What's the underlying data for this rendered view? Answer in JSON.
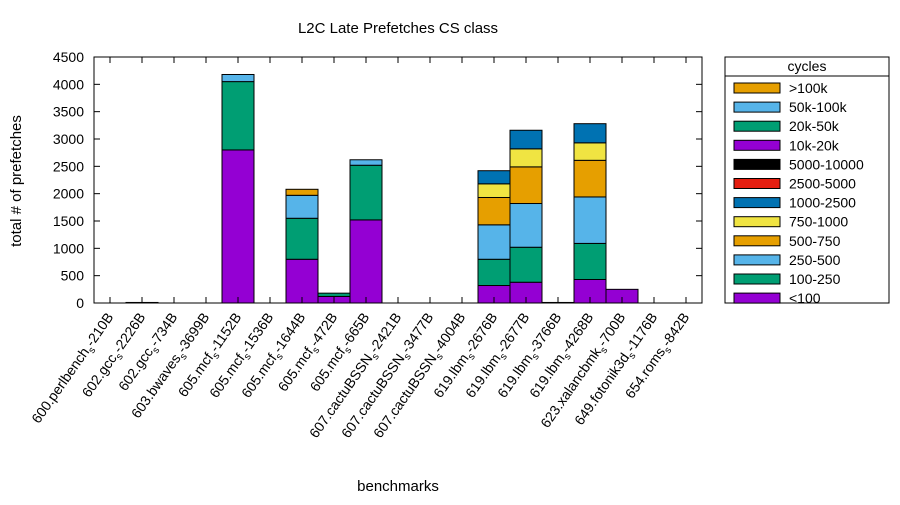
{
  "chart_data": {
    "type": "bar",
    "stacked": true,
    "title": "L2C Late Prefetches CS class",
    "xlabel": "benchmarks",
    "ylabel": "total # of prefetches",
    "ylim": [
      0,
      4500
    ],
    "yticks": [
      0,
      500,
      1000,
      1500,
      2000,
      2500,
      3000,
      3500,
      4000,
      4500
    ],
    "grid": false,
    "legend": {
      "title": "cycles",
      "placement": "right"
    },
    "categories": [
      {
        "pre": "600.perlbench",
        "post": "-210B"
      },
      {
        "pre": "602.gcc",
        "post": "-2226B"
      },
      {
        "pre": "602.gcc",
        "post": "-734B"
      },
      {
        "pre": "603.bwaves",
        "post": "-3699B"
      },
      {
        "pre": "605.mcf",
        "post": "-1152B"
      },
      {
        "pre": "605.mcf",
        "post": "-1536B"
      },
      {
        "pre": "605.mcf",
        "post": "-1644B"
      },
      {
        "pre": "605.mcf",
        "post": "-472B"
      },
      {
        "pre": "605.mcf",
        "post": "-665B"
      },
      {
        "pre": "607.cactuBSSN",
        "post": "-2421B"
      },
      {
        "pre": "607.cactuBSSN",
        "post": "-3477B"
      },
      {
        "pre": "607.cactuBSSN",
        "post": "-4004B"
      },
      {
        "pre": "619.lbm",
        "post": "-2676B"
      },
      {
        "pre": "619.lbm",
        "post": "-2677B"
      },
      {
        "pre": "619.lbm",
        "post": "-3766B"
      },
      {
        "pre": "619.lbm",
        "post": "-4268B"
      },
      {
        "pre": "623.xalancbmk",
        "post": "-700B"
      },
      {
        "pre": "649.fotonik3d",
        "post": "-1176B"
      },
      {
        "pre": "654.roms",
        "post": "-842B"
      }
    ],
    "subscript": "s",
    "series": [
      {
        "name": "<100",
        "color": "#9400d3",
        "values": [
          0,
          10,
          0,
          0,
          2800,
          0,
          800,
          120,
          1520,
          0,
          0,
          0,
          320,
          380,
          10,
          430,
          250,
          0,
          0
        ]
      },
      {
        "name": "100-250",
        "color": "#009e73",
        "values": [
          0,
          0,
          0,
          0,
          1250,
          0,
          750,
          60,
          1000,
          0,
          0,
          0,
          480,
          640,
          0,
          660,
          0,
          0,
          0
        ]
      },
      {
        "name": "250-500",
        "color": "#56b4e9",
        "values": [
          0,
          0,
          0,
          0,
          0,
          0,
          0,
          0,
          0,
          0,
          0,
          0,
          630,
          800,
          0,
          850,
          0,
          0,
          0
        ]
      },
      {
        "name": "500-750",
        "color": "#e69f00",
        "values": [
          0,
          0,
          0,
          0,
          0,
          0,
          0,
          0,
          0,
          0,
          0,
          0,
          500,
          670,
          0,
          670,
          0,
          0,
          0
        ]
      },
      {
        "name": "750-1000",
        "color": "#f0e442",
        "values": [
          0,
          0,
          0,
          0,
          0,
          0,
          0,
          0,
          0,
          0,
          0,
          0,
          250,
          330,
          0,
          320,
          0,
          0,
          0
        ]
      },
      {
        "name": "1000-2500",
        "color": "#0072b2",
        "values": [
          0,
          0,
          0,
          0,
          0,
          0,
          0,
          0,
          0,
          0,
          0,
          0,
          240,
          340,
          0,
          350,
          0,
          0,
          0
        ]
      },
      {
        "name": "2500-5000",
        "color": "#e51e10",
        "values": [
          0,
          0,
          0,
          0,
          0,
          0,
          0,
          0,
          0,
          0,
          0,
          0,
          0,
          0,
          0,
          0,
          0,
          0,
          0
        ]
      },
      {
        "name": "5000-10000",
        "color": "#000000",
        "values": [
          0,
          0,
          0,
          0,
          0,
          0,
          0,
          0,
          0,
          0,
          0,
          0,
          0,
          0,
          0,
          0,
          0,
          0,
          0
        ]
      },
      {
        "name": "10k-20k",
        "color": "#9400d3",
        "values": [
          0,
          0,
          0,
          0,
          0,
          0,
          0,
          0,
          0,
          0,
          0,
          0,
          0,
          0,
          0,
          0,
          0,
          0,
          0
        ]
      },
      {
        "name": "20k-50k",
        "color": "#009e73",
        "values": [
          0,
          0,
          0,
          0,
          0,
          0,
          0,
          0,
          0,
          0,
          0,
          0,
          0,
          0,
          0,
          0,
          0,
          0,
          0
        ]
      },
      {
        "name": "50k-100k",
        "color": "#56b4e9",
        "values": [
          0,
          0,
          0,
          0,
          130,
          0,
          420,
          0,
          100,
          0,
          0,
          0,
          0,
          0,
          0,
          0,
          0,
          0,
          0
        ]
      },
      {
        "name": ">100k",
        "color": "#e69f00",
        "values": [
          0,
          0,
          0,
          0,
          0,
          0,
          110,
          0,
          0,
          0,
          0,
          0,
          0,
          0,
          0,
          0,
          0,
          0,
          0
        ]
      }
    ]
  }
}
